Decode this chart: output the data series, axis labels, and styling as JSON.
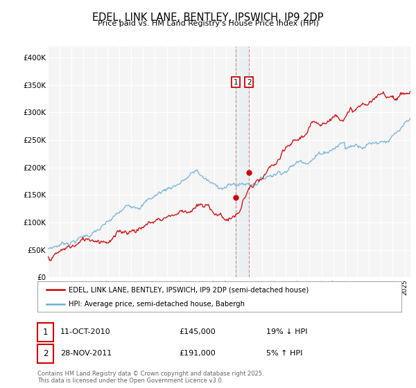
{
  "title": "EDEL, LINK LANE, BENTLEY, IPSWICH, IP9 2DP",
  "subtitle": "Price paid vs. HM Land Registry's House Price Index (HPI)",
  "ylim": [
    0,
    420000
  ],
  "yticks": [
    0,
    50000,
    100000,
    150000,
    200000,
    250000,
    300000,
    350000,
    400000
  ],
  "ytick_labels": [
    "£0",
    "£50K",
    "£100K",
    "£150K",
    "£200K",
    "£250K",
    "£300K",
    "£350K",
    "£400K"
  ],
  "hpi_color": "#6aaed6",
  "price_color": "#cc0000",
  "transaction1": {
    "date": "11-OCT-2010",
    "price": 145000,
    "hpi_rel": "19% ↓ HPI"
  },
  "transaction2": {
    "date": "28-NOV-2011",
    "price": 191000,
    "hpi_rel": "5% ↑ HPI"
  },
  "legend_label1": "EDEL, LINK LANE, BENTLEY, IPSWICH, IP9 2DP (semi-detached house)",
  "legend_label2": "HPI: Average price, semi-detached house, Babergh",
  "footnote": "Contains HM Land Registry data © Crown copyright and database right 2025.\nThis data is licensed under the Open Government Licence v3.0.",
  "t1_year": 2010.79,
  "t2_year": 2011.91,
  "t1_price": 145000,
  "t2_price": 191000,
  "xmin": 1995,
  "xmax": 2025.5
}
